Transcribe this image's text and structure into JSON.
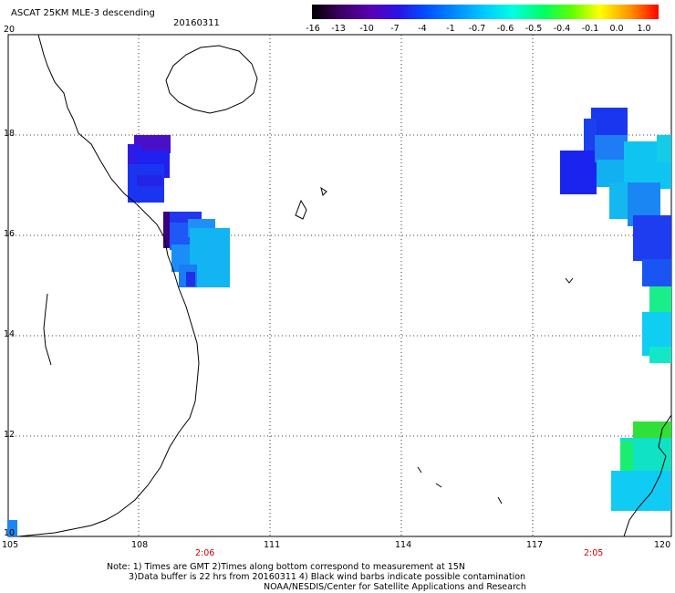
{
  "header": {
    "title": "ASCAT 25KM MLE-3 descending",
    "date": "20160311"
  },
  "colorbar": {
    "ticks": [
      "-16",
      "-13",
      "-10",
      "-7",
      "-4",
      "-1",
      "-0.7",
      "-0.6",
      "-0.5",
      "-0.4",
      "-0.1",
      "0.0",
      "1.0"
    ],
    "colors": [
      "#000000",
      "#3a0060",
      "#5a00b4",
      "#2a14e6",
      "#0050ff",
      "#0090ff",
      "#00ccff",
      "#00ffe0",
      "#00ff60",
      "#60ff00",
      "#ffff00",
      "#ff9000",
      "#ff0000"
    ]
  },
  "map": {
    "lat_labels": [
      "20",
      "18",
      "16",
      "14",
      "12",
      "10"
    ],
    "lon_labels": [
      "105",
      "108",
      "111",
      "114",
      "117",
      "120"
    ],
    "time_labels": [
      "2:06",
      "2:05"
    ],
    "grid": "dotted"
  },
  "footer": {
    "note1": "Note: 1) Times are GMT 2)Times along bottom correspond to measurement at 15N",
    "note2": "3)Data buffer is 22 hrs from 20160311 4) Black wind barbs indicate possible contamination",
    "note3": "NOAA/NESDIS/Center for Satellite Applications and Research"
  }
}
